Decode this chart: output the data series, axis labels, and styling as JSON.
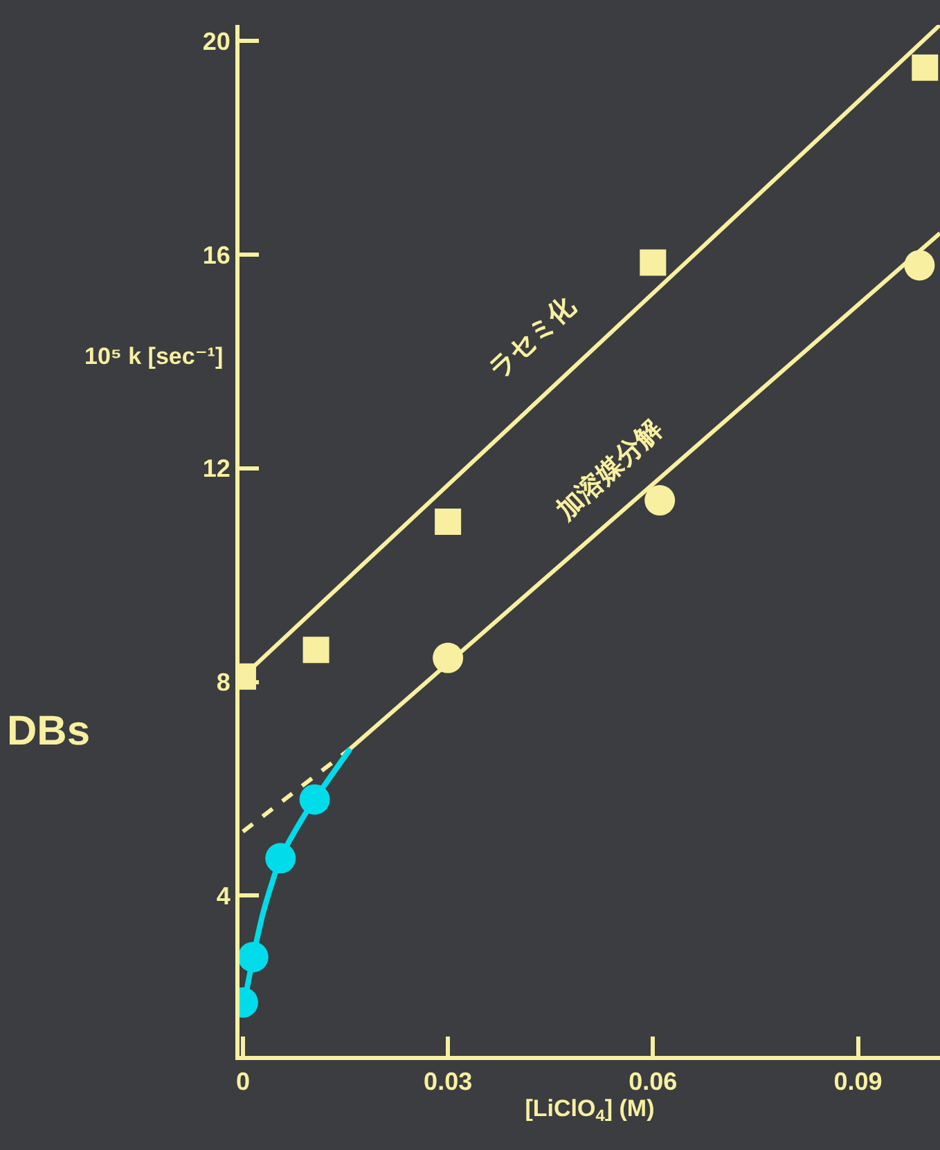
{
  "chart_data": {
    "type": "scatter",
    "xlabel": "[LiClO$_{4}$] (M)",
    "ylabel": "10⁵ k [sec⁻¹]",
    "xlim": [
      -0.0005,
      0.102
    ],
    "ylim": [
      1,
      20.3
    ],
    "xticks": [
      0,
      0.03,
      0.06,
      0.09
    ],
    "yticks": [
      4,
      8,
      12,
      16,
      20
    ],
    "series": [
      {
        "marker": "square",
        "color": "#f8f0a0",
        "x": [
          0,
          0.0107,
          0.03,
          0.06,
          0.0998
        ],
        "values": [
          8.1,
          8.6,
          11.0,
          15.85,
          19.5
        ]
      },
      {
        "type": "line",
        "line_style": "solid",
        "color": "#f8f0a0",
        "x": [
          0,
          0.102
        ],
        "values": [
          8.1,
          20.3
        ]
      },
      {
        "marker": "circle",
        "color": "#f8f0a0",
        "x": [
          0.03,
          0.061,
          0.099
        ],
        "values": [
          8.45,
          11.4,
          15.8
        ]
      },
      {
        "type": "line",
        "line_style": "solid",
        "color": "#f8f0a0",
        "x": [
          0.0157,
          0.102
        ],
        "values": [
          6.75,
          16.4
        ]
      },
      {
        "type": "line",
        "line_style": "dashed",
        "color": "#f8f0a0",
        "x": [
          0,
          0.0157
        ],
        "values": [
          5.2,
          6.75
        ]
      },
      {
        "marker": "circle",
        "color": "#00dcea",
        "x": [
          0,
          0.0015,
          0.0055,
          0.0105
        ],
        "values": [
          2.0,
          2.85,
          4.7,
          5.8
        ]
      },
      {
        "type": "line",
        "line_style": "solid",
        "color": "#00dcea",
        "x": [
          0.0005,
          0.0015,
          0.003,
          0.0055,
          0.0085,
          0.0105,
          0.0157
        ],
        "values": [
          2.2,
          2.85,
          3.7,
          4.7,
          5.4,
          5.8,
          6.75
        ]
      }
    ],
    "annotations": [
      "ラセミ化",
      "加溶媒分解",
      "DBs"
    ]
  }
}
